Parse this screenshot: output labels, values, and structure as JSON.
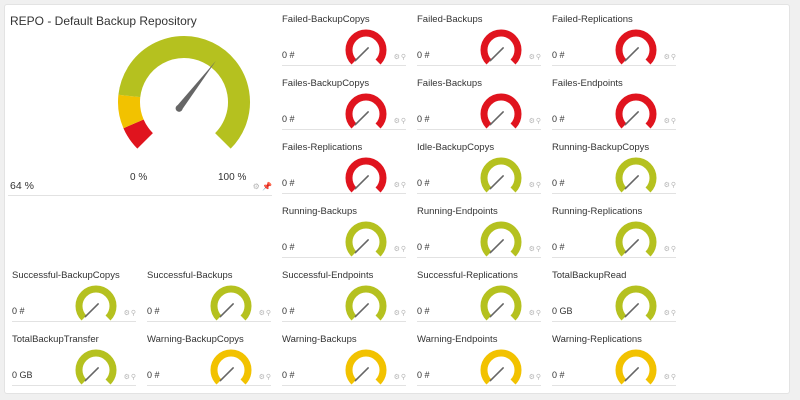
{
  "main_gauge": {
    "title": "REPO - Default Backup Repository",
    "value_label": "64 %",
    "value_percent": 64,
    "min_label": "0 %",
    "max_label": "100 %"
  },
  "colors": {
    "ok": "#b5c11f",
    "warning": "#f2c200",
    "error": "#e0141e",
    "needle": "#666666"
  },
  "tiles": [
    {
      "title": "Failed-BackupCopys",
      "value": "0 #",
      "status": "error"
    },
    {
      "title": "Failed-Backups",
      "value": "0 #",
      "status": "error"
    },
    {
      "title": "Failed-Replications",
      "value": "0 #",
      "status": "error"
    },
    {
      "title": "Failes-BackupCopys",
      "value": "0 #",
      "status": "error"
    },
    {
      "title": "Failes-Backups",
      "value": "0 #",
      "status": "error"
    },
    {
      "title": "Failes-Endpoints",
      "value": "0 #",
      "status": "error"
    },
    {
      "title": "Failes-Replications",
      "value": "0 #",
      "status": "error"
    },
    {
      "title": "Idle-BackupCopys",
      "value": "0 #",
      "status": "ok"
    },
    {
      "title": "Running-BackupCopys",
      "value": "0 #",
      "status": "ok"
    },
    {
      "title": "Running-Backups",
      "value": "0 #",
      "status": "ok"
    },
    {
      "title": "Running-Endpoints",
      "value": "0 #",
      "status": "ok"
    },
    {
      "title": "Running-Replications",
      "value": "0 #",
      "status": "ok"
    },
    {
      "title": "Successful-BackupCopys",
      "value": "0 #",
      "status": "ok"
    },
    {
      "title": "Successful-Backups",
      "value": "0 #",
      "status": "ok"
    },
    {
      "title": "Successful-Endpoints",
      "value": "0 #",
      "status": "ok"
    },
    {
      "title": "Successful-Replications",
      "value": "0 #",
      "status": "ok"
    },
    {
      "title": "TotalBackupRead",
      "value": "0 GB",
      "status": "ok"
    },
    {
      "title": "TotalBackupTransfer",
      "value": "0 GB",
      "status": "ok"
    },
    {
      "title": "Warning-BackupCopys",
      "value": "0 #",
      "status": "warning"
    },
    {
      "title": "Warning-Backups",
      "value": "0 #",
      "status": "warning"
    },
    {
      "title": "Warning-Endpoints",
      "value": "0 #",
      "status": "warning"
    },
    {
      "title": "Warning-Replications",
      "value": "0 #",
      "status": "warning"
    }
  ],
  "tile_icons": [
    "gear-icon",
    "pin-icon"
  ]
}
